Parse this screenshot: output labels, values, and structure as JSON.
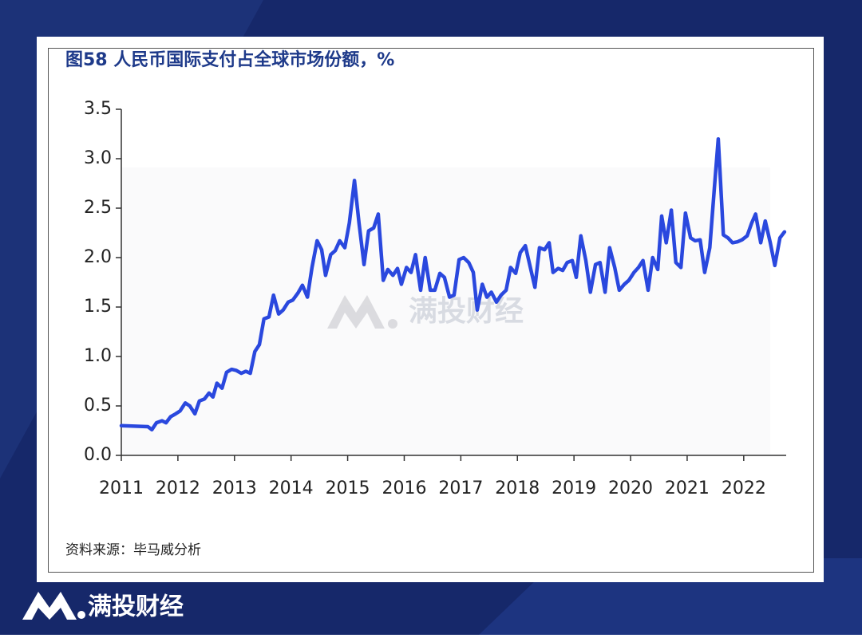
{
  "chart_data": {
    "type": "line",
    "title": "图58 人民币国际支付占全球市场份额，%",
    "source": "资料来源：毕马威分析",
    "watermark": "满投财经",
    "brand": "满投财经",
    "x": [
      2011.0,
      2011.47,
      2011.54,
      2011.62,
      2011.72,
      2011.79,
      2011.87,
      2011.96,
      2012.04,
      2012.13,
      2012.21,
      2012.3,
      2012.38,
      2012.47,
      2012.55,
      2012.62,
      2012.69,
      2012.78,
      2012.86,
      2012.95,
      2013.03,
      2013.12,
      2013.2,
      2013.28,
      2013.36,
      2013.44,
      2013.52,
      2013.61,
      2013.69,
      2013.78,
      2013.86,
      2013.95,
      2014.03,
      2014.12,
      2014.2,
      2014.29,
      2014.37,
      2014.46,
      2014.54,
      2014.61,
      2014.7,
      2014.78,
      2014.86,
      2014.95,
      2015.03,
      2015.12,
      2015.2,
      2015.29,
      2015.37,
      2015.46,
      2015.54,
      2015.63,
      2015.71,
      2015.8,
      2015.88,
      2015.95,
      2016.04,
      2016.12,
      2016.2,
      2016.29,
      2016.37,
      2016.46,
      2016.54,
      2016.63,
      2016.71,
      2016.8,
      2016.88,
      2016.97,
      2017.05,
      2017.14,
      2017.22,
      2017.29,
      2017.38,
      2017.46,
      2017.54,
      2017.63,
      2017.71,
      2017.8,
      2017.88,
      2017.97,
      2018.05,
      2018.14,
      2018.22,
      2018.31,
      2018.39,
      2018.48,
      2018.56,
      2018.63,
      2018.72,
      2018.8,
      2018.88,
      2018.97,
      2019.04,
      2019.12,
      2019.21,
      2019.29,
      2019.38,
      2019.46,
      2019.55,
      2019.63,
      2019.72,
      2019.8,
      2019.89,
      2019.97,
      2020.06,
      2020.14,
      2020.22,
      2020.31,
      2020.39,
      2020.48,
      2020.55,
      2020.63,
      2020.72,
      2020.8,
      2020.89,
      2020.97,
      2021.06,
      2021.14,
      2021.23,
      2021.31,
      2021.4,
      2021.48,
      2021.55,
      2021.64,
      2021.72,
      2021.8,
      2021.89,
      2021.97,
      2022.06,
      2022.14,
      2022.21,
      2022.3,
      2022.38,
      2022.47,
      2022.55,
      2022.64,
      2022.72
    ],
    "series": [
      {
        "color": "#2a48de",
        "values": [
          0.3,
          0.29,
          0.26,
          0.33,
          0.35,
          0.33,
          0.39,
          0.42,
          0.45,
          0.53,
          0.5,
          0.42,
          0.55,
          0.57,
          0.63,
          0.59,
          0.73,
          0.68,
          0.84,
          0.87,
          0.86,
          0.83,
          0.85,
          0.83,
          1.05,
          1.12,
          1.38,
          1.4,
          1.62,
          1.43,
          1.47,
          1.55,
          1.57,
          1.64,
          1.72,
          1.6,
          1.9,
          2.17,
          2.08,
          1.82,
          2.03,
          2.07,
          2.17,
          2.1,
          2.35,
          2.78,
          2.35,
          1.93,
          2.27,
          2.3,
          2.44,
          1.77,
          1.88,
          1.82,
          1.89,
          1.73,
          1.9,
          1.85,
          2.03,
          1.67,
          2.0,
          1.67,
          1.67,
          1.84,
          1.8,
          1.6,
          1.62,
          1.98,
          2.0,
          1.95,
          1.85,
          1.47,
          1.73,
          1.6,
          1.65,
          1.55,
          1.62,
          1.67,
          1.9,
          1.84,
          2.05,
          2.12,
          1.92,
          1.7,
          2.1,
          2.08,
          2.15,
          1.85,
          1.89,
          1.87,
          1.95,
          1.97,
          1.8,
          2.22,
          1.97,
          1.65,
          1.93,
          1.95,
          1.65,
          2.1,
          1.9,
          1.67,
          1.73,
          1.77,
          1.85,
          1.9,
          1.97,
          1.67,
          2.0,
          1.88,
          2.42,
          2.15,
          2.48,
          1.95,
          1.9,
          2.45,
          2.2,
          2.17,
          2.18,
          1.85,
          2.1,
          2.7,
          3.2,
          2.23,
          2.2,
          2.15,
          2.16,
          2.18,
          2.22,
          2.35,
          2.44,
          2.15,
          2.37,
          2.15,
          1.92,
          2.2,
          2.26
        ]
      }
    ],
    "xlim": [
      2011,
      2022.75
    ],
    "xticks": [
      2011,
      2012,
      2013,
      2014,
      2015,
      2016,
      2017,
      2018,
      2019,
      2020,
      2021,
      2022
    ],
    "ylim": [
      0,
      3.5
    ],
    "yticks": [
      {
        "value": 0,
        "label": "0.0"
      },
      0.5,
      {
        "value": 1,
        "label": "1.0"
      },
      1.5,
      {
        "value": 2,
        "label": "2.0"
      },
      2.5,
      {
        "value": 3,
        "label": "3.0"
      },
      3.5
    ],
    "grid": false
  }
}
